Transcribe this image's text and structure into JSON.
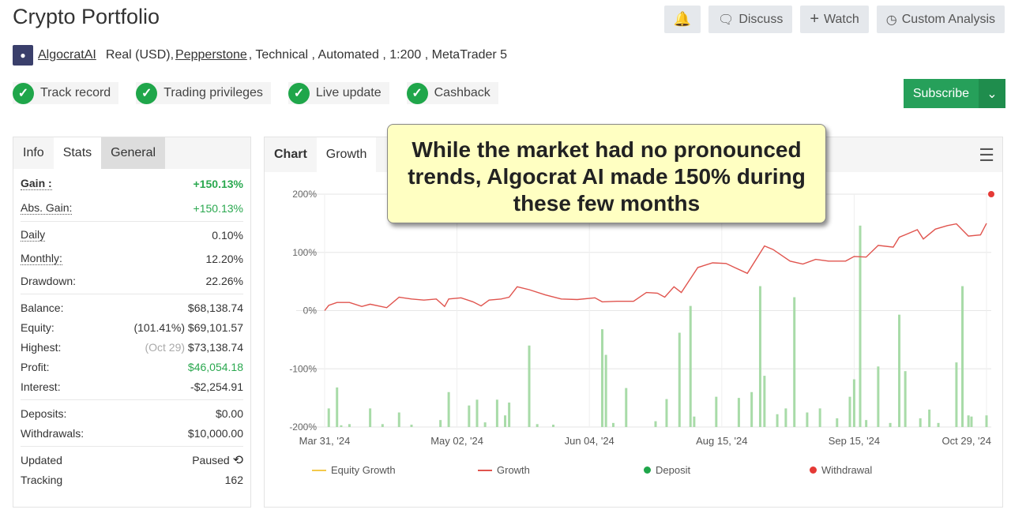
{
  "header": {
    "title": "Crypto Portfolio",
    "buttons": {
      "discuss": "Discuss",
      "watch": "Watch",
      "custom": "Custom Analysis"
    },
    "owner": "AlgocratAI",
    "account_type": "Real (USD),",
    "broker": "Pepperstone",
    "details": ", Technical , Automated , 1:200 , MetaTrader 5"
  },
  "badges": [
    "Track record",
    "Trading privileges",
    "Live update",
    "Cashback"
  ],
  "subscribe": "Subscribe",
  "stats": {
    "tabs": [
      "Info",
      "Stats",
      "General"
    ],
    "gain": {
      "label": "Gain :",
      "value": "+150.13%"
    },
    "abs_gain": {
      "label": "Abs. Gain:",
      "value": "+150.13%"
    },
    "daily": {
      "label": "Daily",
      "value": "0.10%"
    },
    "monthly": {
      "label": "Monthly:",
      "value": "12.20%"
    },
    "drawdown": {
      "label": "Drawdown:",
      "value": "22.26%"
    },
    "balance": {
      "label": "Balance:",
      "value": "$68,138.74"
    },
    "equity": {
      "label": "Equity:",
      "pct": "(101.41%)",
      "value": "$69,101.57"
    },
    "highest": {
      "label": "Highest:",
      "date": "(Oct 29)",
      "value": "$73,138.74"
    },
    "profit": {
      "label": "Profit:",
      "value": "$46,054.18"
    },
    "interest": {
      "label": "Interest:",
      "value": "-$2,254.91"
    },
    "deposits": {
      "label": "Deposits:",
      "value": "$0.00"
    },
    "withdrawals": {
      "label": "Withdrawals:",
      "value": "$10,000.00"
    },
    "updated": {
      "label": "Updated",
      "value": "Paused"
    },
    "tracking": {
      "label": "Tracking",
      "value": "162"
    }
  },
  "chart_panel": {
    "tabs": [
      "Chart",
      "Growth"
    ]
  },
  "callout": "While the market had no pronounced trends, Algocrat AI made 150% during these few months",
  "colors": {
    "accent": "#26a05a",
    "growth": "#e0544e",
    "bars": "#a8dba8",
    "equity": "#f3c94b",
    "deposit": "#1fa64a",
    "withdrawal": "#e53935"
  },
  "chart_data": {
    "type": "line",
    "ylim": [
      -200,
      200
    ],
    "yticks": [
      "200%",
      "100%",
      "0%",
      "-100%",
      "-200%"
    ],
    "ytick_values": [
      200,
      100,
      0,
      -100,
      -200
    ],
    "xticks": [
      "Mar 31, '24",
      "May 02, '24",
      "Jun 04, '24",
      "Aug 15, '24",
      "Sep 15, '24",
      "Oct 29, '24"
    ],
    "xtick_dates": [
      "2024-03-31",
      "2024-05-02",
      "2024-06-04",
      "2024-08-15",
      "2024-09-15",
      "2024-10-29"
    ],
    "grid": true,
    "legend_position": "bottom",
    "legend": [
      "Equity Growth",
      "Growth",
      "Deposit",
      "Withdrawal"
    ],
    "growth": [
      [
        "2024-03-31",
        0
      ],
      [
        "2024-04-01",
        9
      ],
      [
        "2024-04-03",
        14
      ],
      [
        "2024-04-06",
        14
      ],
      [
        "2024-04-09",
        7
      ],
      [
        "2024-04-11",
        11
      ],
      [
        "2024-04-15",
        5
      ],
      [
        "2024-04-18",
        23
      ],
      [
        "2024-04-21",
        20
      ],
      [
        "2024-04-24",
        18
      ],
      [
        "2024-04-27",
        20
      ],
      [
        "2024-04-29",
        7
      ],
      [
        "2024-04-30",
        20
      ],
      [
        "2024-05-03",
        22
      ],
      [
        "2024-05-06",
        15
      ],
      [
        "2024-05-08",
        8
      ],
      [
        "2024-05-10",
        18
      ],
      [
        "2024-05-13",
        20
      ],
      [
        "2024-05-15",
        23
      ],
      [
        "2024-05-17",
        41
      ],
      [
        "2024-05-20",
        36
      ],
      [
        "2024-05-24",
        27
      ],
      [
        "2024-05-28",
        20
      ],
      [
        "2024-06-01",
        19
      ],
      [
        "2024-06-07",
        22
      ],
      [
        "2024-06-11",
        15
      ],
      [
        "2024-06-19",
        16
      ],
      [
        "2024-06-28",
        16
      ],
      [
        "2024-07-05",
        31
      ],
      [
        "2024-07-11",
        30
      ],
      [
        "2024-07-15",
        23
      ],
      [
        "2024-07-20",
        41
      ],
      [
        "2024-07-24",
        31
      ],
      [
        "2024-08-02",
        74
      ],
      [
        "2024-08-10",
        82
      ],
      [
        "2024-08-16",
        81
      ],
      [
        "2024-08-18",
        74
      ],
      [
        "2024-08-21",
        64
      ],
      [
        "2024-08-25",
        111
      ],
      [
        "2024-08-27",
        105
      ],
      [
        "2024-08-31",
        85
      ],
      [
        "2024-09-03",
        80
      ],
      [
        "2024-09-06",
        88
      ],
      [
        "2024-09-09",
        85
      ],
      [
        "2024-09-13",
        85
      ],
      [
        "2024-09-15",
        93
      ],
      [
        "2024-09-19",
        92
      ],
      [
        "2024-09-23",
        112
      ],
      [
        "2024-09-28",
        109
      ],
      [
        "2024-09-30",
        126
      ],
      [
        "2024-10-06",
        139
      ],
      [
        "2024-10-08",
        123
      ],
      [
        "2024-10-12",
        140
      ],
      [
        "2024-10-16",
        146
      ],
      [
        "2024-10-19",
        149
      ],
      [
        "2024-10-23",
        128
      ],
      [
        "2024-10-27",
        130
      ],
      [
        "2024-10-29",
        150
      ]
    ],
    "bars": [
      [
        "2024-04-01",
        -168
      ],
      [
        "2024-04-03",
        -132
      ],
      [
        "2024-04-04",
        -197
      ],
      [
        "2024-04-06",
        -195
      ],
      [
        "2024-04-11",
        -168
      ],
      [
        "2024-04-14",
        -195
      ],
      [
        "2024-04-18",
        -175
      ],
      [
        "2024-04-21",
        -196
      ],
      [
        "2024-04-28",
        -188
      ],
      [
        "2024-04-30",
        -140
      ],
      [
        "2024-05-05",
        -163
      ],
      [
        "2024-05-07",
        -153
      ],
      [
        "2024-05-09",
        -192
      ],
      [
        "2024-05-12",
        -153
      ],
      [
        "2024-05-14",
        -180
      ],
      [
        "2024-05-15",
        -158
      ],
      [
        "2024-05-20",
        -60
      ],
      [
        "2024-05-22",
        -195
      ],
      [
        "2024-05-26",
        -196
      ],
      [
        "2024-06-11",
        -32
      ],
      [
        "2024-06-13",
        -76
      ],
      [
        "2024-06-17",
        -193
      ],
      [
        "2024-06-24",
        -133
      ],
      [
        "2024-07-10",
        -190
      ],
      [
        "2024-07-16",
        -152
      ],
      [
        "2024-07-23",
        -38
      ],
      [
        "2024-07-29",
        8
      ],
      [
        "2024-07-31",
        -182
      ],
      [
        "2024-08-12",
        -148
      ],
      [
        "2024-08-19",
        -150
      ],
      [
        "2024-08-22",
        -140
      ],
      [
        "2024-08-24",
        42
      ],
      [
        "2024-08-25",
        -112
      ],
      [
        "2024-08-28",
        -178
      ],
      [
        "2024-08-30",
        -168
      ],
      [
        "2024-09-01",
        23
      ],
      [
        "2024-09-04",
        -175
      ],
      [
        "2024-09-07",
        -168
      ],
      [
        "2024-09-11",
        -185
      ],
      [
        "2024-09-14",
        -148
      ],
      [
        "2024-09-15",
        -118
      ],
      [
        "2024-09-17",
        146
      ],
      [
        "2024-09-19",
        -188
      ],
      [
        "2024-09-23",
        -96
      ],
      [
        "2024-09-27",
        -193
      ],
      [
        "2024-09-30",
        -7
      ],
      [
        "2024-10-02",
        -104
      ],
      [
        "2024-10-07",
        -185
      ],
      [
        "2024-10-10",
        -170
      ],
      [
        "2024-10-13",
        -193
      ],
      [
        "2024-10-19",
        -89
      ],
      [
        "2024-10-21",
        42
      ],
      [
        "2024-10-23",
        -180
      ],
      [
        "2024-10-24",
        -182
      ],
      [
        "2024-10-29",
        -180
      ]
    ],
    "withdrawals": [
      [
        "2024-10-29",
        200
      ]
    ]
  }
}
